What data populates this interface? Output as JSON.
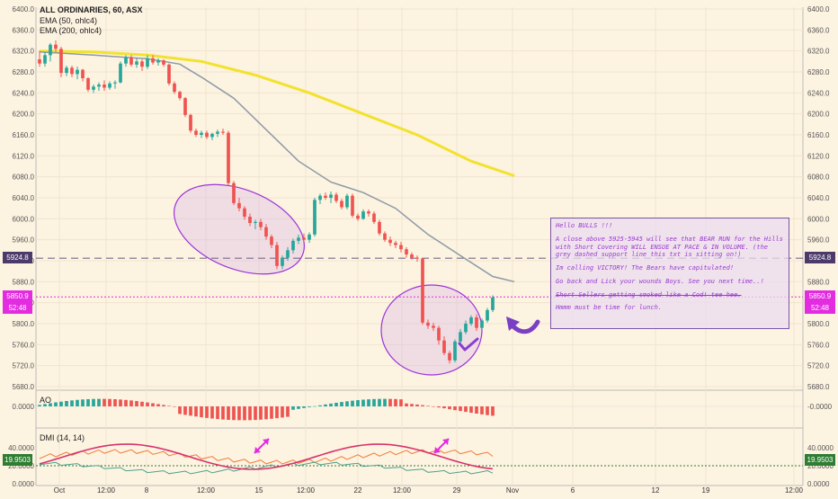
{
  "chart_data": {
    "type": "candlestick",
    "title": "ALL ORDINARIES, 60, ASX",
    "legend": [
      "EMA (50, ohlc4)",
      "EMA (200, ohlc4)"
    ],
    "y_ticks": [
      "6400.0",
      "6360.0",
      "6320.0",
      "6280.0",
      "6240.0",
      "6200.0",
      "6160.0",
      "6120.0",
      "6080.0",
      "6040.0",
      "6000.0",
      "5960.0",
      "5920.0",
      "5880.0",
      "5840.0",
      "5800.0",
      "5760.0",
      "5720.0",
      "5680.0"
    ],
    "ylim": [
      5680,
      6400
    ],
    "x_ticks": [
      "Oct",
      "12:00",
      "8",
      "12:00",
      "15",
      "12:00",
      "22",
      "12:00",
      "29",
      "Nov",
      "6",
      "12",
      "19",
      "12:00"
    ],
    "support_line": 5924.8,
    "support_label": "5924.8",
    "last_price": 5850.9,
    "last_price_label": "5850.9",
    "countdown": "52:48",
    "candles": [
      [
        6304,
        6320,
        6290,
        6296
      ],
      [
        6296,
        6318,
        6290,
        6312
      ],
      [
        6312,
        6335,
        6300,
        6332
      ],
      [
        6332,
        6340,
        6318,
        6324
      ],
      [
        6324,
        6328,
        6270,
        6278
      ],
      [
        6278,
        6292,
        6272,
        6288
      ],
      [
        6288,
        6292,
        6270,
        6276
      ],
      [
        6276,
        6290,
        6266,
        6284
      ],
      [
        6284,
        6286,
        6262,
        6268
      ],
      [
        6268,
        6270,
        6242,
        6246
      ],
      [
        6246,
        6256,
        6240,
        6252
      ],
      [
        6252,
        6260,
        6244,
        6256
      ],
      [
        6256,
        6264,
        6244,
        6250
      ],
      [
        6250,
        6262,
        6246,
        6258
      ],
      [
        6258,
        6264,
        6248,
        6260
      ],
      [
        6260,
        6300,
        6258,
        6296
      ],
      [
        6296,
        6312,
        6290,
        6308
      ],
      [
        6308,
        6312,
        6290,
        6294
      ],
      [
        6294,
        6306,
        6288,
        6300
      ],
      [
        6300,
        6304,
        6282,
        6290
      ],
      [
        6290,
        6312,
        6286,
        6306
      ],
      [
        6306,
        6312,
        6294,
        6298
      ],
      [
        6298,
        6306,
        6292,
        6302
      ],
      [
        6302,
        6304,
        6290,
        6294
      ],
      [
        6294,
        6296,
        6254,
        6258
      ],
      [
        6258,
        6262,
        6238,
        6242
      ],
      [
        6242,
        6244,
        6226,
        6230
      ],
      [
        6230,
        6232,
        6194,
        6198
      ],
      [
        6198,
        6200,
        6164,
        6168
      ],
      [
        6168,
        6172,
        6156,
        6160
      ],
      [
        6160,
        6168,
        6154,
        6164
      ],
      [
        6164,
        6168,
        6152,
        6156
      ],
      [
        6156,
        6164,
        6150,
        6162
      ],
      [
        6162,
        6170,
        6156,
        6166
      ],
      [
        6166,
        6172,
        6160,
        6164
      ],
      [
        6164,
        6168,
        6064,
        6068
      ],
      [
        6068,
        6072,
        6026,
        6030
      ],
      [
        6030,
        6040,
        6014,
        6020
      ],
      [
        6020,
        6024,
        5998,
        6004
      ],
      [
        6004,
        6010,
        5986,
        5992
      ],
      [
        5992,
        5998,
        5980,
        5994
      ],
      [
        5994,
        6000,
        5978,
        5984
      ],
      [
        5984,
        5990,
        5960,
        5966
      ],
      [
        5966,
        5970,
        5944,
        5950
      ],
      [
        5950,
        5956,
        5904,
        5910
      ],
      [
        5910,
        5930,
        5904,
        5926
      ],
      [
        5926,
        5946,
        5920,
        5940
      ],
      [
        5940,
        5962,
        5934,
        5958
      ],
      [
        5958,
        5970,
        5952,
        5964
      ],
      [
        5964,
        5972,
        5956,
        5960
      ],
      [
        5960,
        5974,
        5954,
        5970
      ],
      [
        5970,
        6040,
        5966,
        6036
      ],
      [
        6036,
        6048,
        6028,
        6044
      ],
      [
        6044,
        6050,
        6036,
        6040
      ],
      [
        6040,
        6052,
        6030,
        6046
      ],
      [
        6046,
        6050,
        6030,
        6034
      ],
      [
        6034,
        6038,
        6018,
        6022
      ],
      [
        6022,
        6048,
        6018,
        6044
      ],
      [
        6044,
        6048,
        6002,
        6006
      ],
      [
        6006,
        6010,
        5996,
        6000
      ],
      [
        6000,
        6018,
        5998,
        6014
      ],
      [
        6014,
        6018,
        6004,
        6010
      ],
      [
        6010,
        6014,
        5990,
        5994
      ],
      [
        5994,
        5998,
        5968,
        5972
      ],
      [
        5972,
        5976,
        5956,
        5960
      ],
      [
        5960,
        5966,
        5948,
        5954
      ],
      [
        5954,
        5958,
        5944,
        5950
      ],
      [
        5950,
        5956,
        5936,
        5942
      ],
      [
        5942,
        5946,
        5926,
        5932
      ],
      [
        5932,
        5936,
        5922,
        5926
      ],
      [
        5926,
        5930,
        5918,
        5924
      ],
      [
        5924,
        5926,
        5798,
        5802
      ],
      [
        5802,
        5808,
        5790,
        5796
      ],
      [
        5796,
        5802,
        5786,
        5792
      ],
      [
        5792,
        5796,
        5760,
        5768
      ],
      [
        5768,
        5776,
        5740,
        5744
      ],
      [
        5744,
        5748,
        5724,
        5730
      ],
      [
        5730,
        5770,
        5726,
        5766
      ],
      [
        5766,
        5790,
        5760,
        5784
      ],
      [
        5784,
        5806,
        5780,
        5800
      ],
      [
        5800,
        5816,
        5796,
        5812
      ],
      [
        5812,
        5818,
        5786,
        5792
      ],
      [
        5792,
        5810,
        5790,
        5806
      ],
      [
        5806,
        5830,
        5802,
        5826
      ],
      [
        5826,
        5854,
        5822,
        5850
      ]
    ],
    "ema50": [
      [
        0,
        6318
      ],
      [
        10,
        6312
      ],
      [
        20,
        6305
      ],
      [
        26,
        6295
      ],
      [
        30,
        6270
      ],
      [
        36,
        6230
      ],
      [
        42,
        6170
      ],
      [
        48,
        6110
      ],
      [
        54,
        6070
      ],
      [
        60,
        6050
      ],
      [
        66,
        6020
      ],
      [
        72,
        5970
      ],
      [
        78,
        5930
      ],
      [
        84,
        5890
      ],
      [
        88,
        5880
      ]
    ],
    "ema200_x_end": 88,
    "ema200": [
      [
        0,
        6320
      ],
      [
        10,
        6318
      ],
      [
        20,
        6312
      ],
      [
        30,
        6300
      ],
      [
        40,
        6274
      ],
      [
        50,
        6240
      ],
      [
        60,
        6200
      ],
      [
        70,
        6160
      ],
      [
        80,
        6110
      ],
      [
        88,
        6082
      ]
    ],
    "indicators": [
      {
        "name": "AO",
        "ticks": [
          "0.0000",
          "-0.0000"
        ]
      },
      {
        "name": "DMI (14, 14)",
        "ticks": [
          "40.0000",
          "20.0000",
          "0.0000"
        ],
        "value_label": "19.9503",
        "level": 19.9503
      }
    ]
  },
  "annotation": {
    "lines": [
      "Hello BULLS !!!",
      "A close above 5925-5945 will see that BEAR RUN for the Hills with Short Covering  WILL ENSUE AT PACE & IN VOLUME. (the grey dashed support line this txt is sitting on!)",
      "Im calling VICTORY! The Bears have capitulated!",
      "Go back and Lick your wounds Boys. See you next time..!",
      "Short Sellers getting smoked like a Cod! tee hee.",
      "Hmmm must be time for lunch."
    ]
  },
  "colors": {
    "up": "#26a69a",
    "down": "#ef5350",
    "ema50": "#8b9aa5",
    "ema200": "#f2e22e",
    "support": "#7a6b88",
    "price_line": "#e32be0",
    "ellipse_stroke": "#9a34d8",
    "ellipse_fill": "rgba(214,180,232,0.35)"
  }
}
